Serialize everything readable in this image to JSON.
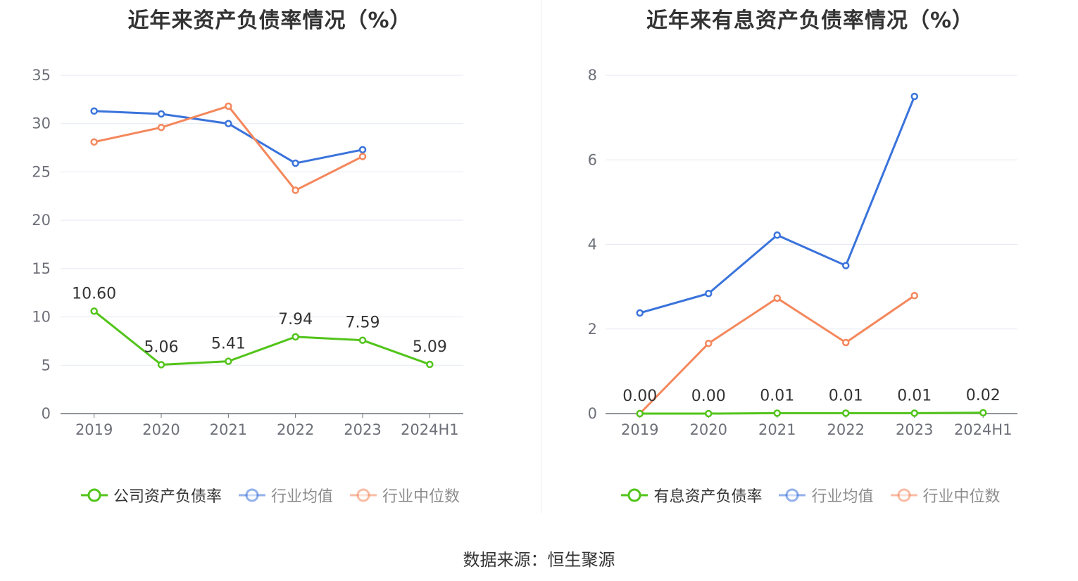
{
  "chart_data": [
    {
      "type": "line",
      "title": "近年来资产负债率情况（%）",
      "categories": [
        "2019",
        "2020",
        "2021",
        "2022",
        "2023",
        "2024H1"
      ],
      "ylim": [
        0,
        35
      ],
      "yticks": [
        0,
        5,
        10,
        15,
        20,
        25,
        30,
        35
      ],
      "grid": true,
      "legend_position": "bottom",
      "series": [
        {
          "name": "公司资产负债率",
          "color": "#52c41a",
          "labels": true,
          "values": [
            10.6,
            5.06,
            5.41,
            7.94,
            7.59,
            5.09
          ],
          "value_labels": [
            "10.60",
            "5.06",
            "5.41",
            "7.94",
            "7.59",
            "5.09"
          ]
        },
        {
          "name": "行业均值",
          "color": "#3a73db",
          "labels": false,
          "values": [
            31.3,
            31.0,
            30.0,
            25.9,
            27.3,
            null
          ]
        },
        {
          "name": "行业中位数",
          "color": "#f4875c",
          "labels": false,
          "values": [
            28.1,
            29.6,
            31.8,
            23.1,
            26.6,
            null
          ]
        }
      ]
    },
    {
      "type": "line",
      "title": "近年来有息资产负债率情况（%）",
      "categories": [
        "2019",
        "2020",
        "2021",
        "2022",
        "2023",
        "2024H1"
      ],
      "ylim": [
        0,
        8
      ],
      "yticks": [
        0,
        2,
        4,
        6,
        8
      ],
      "grid": true,
      "legend_position": "bottom",
      "series": [
        {
          "name": "有息资产负债率",
          "color": "#52c41a",
          "labels": true,
          "values": [
            0.0,
            0.0,
            0.01,
            0.01,
            0.01,
            0.02
          ],
          "value_labels": [
            "0.00",
            "0.00",
            "0.01",
            "0.01",
            "0.01",
            "0.02"
          ]
        },
        {
          "name": "行业均值",
          "color": "#3a73db",
          "labels": false,
          "values": [
            2.38,
            2.84,
            4.22,
            3.5,
            7.5,
            null
          ]
        },
        {
          "name": "行业中位数",
          "color": "#f4875c",
          "labels": false,
          "values": [
            0.0,
            1.66,
            2.73,
            1.68,
            2.79,
            null
          ]
        }
      ]
    }
  ],
  "footer": {
    "source": "数据来源：恒生聚源"
  }
}
